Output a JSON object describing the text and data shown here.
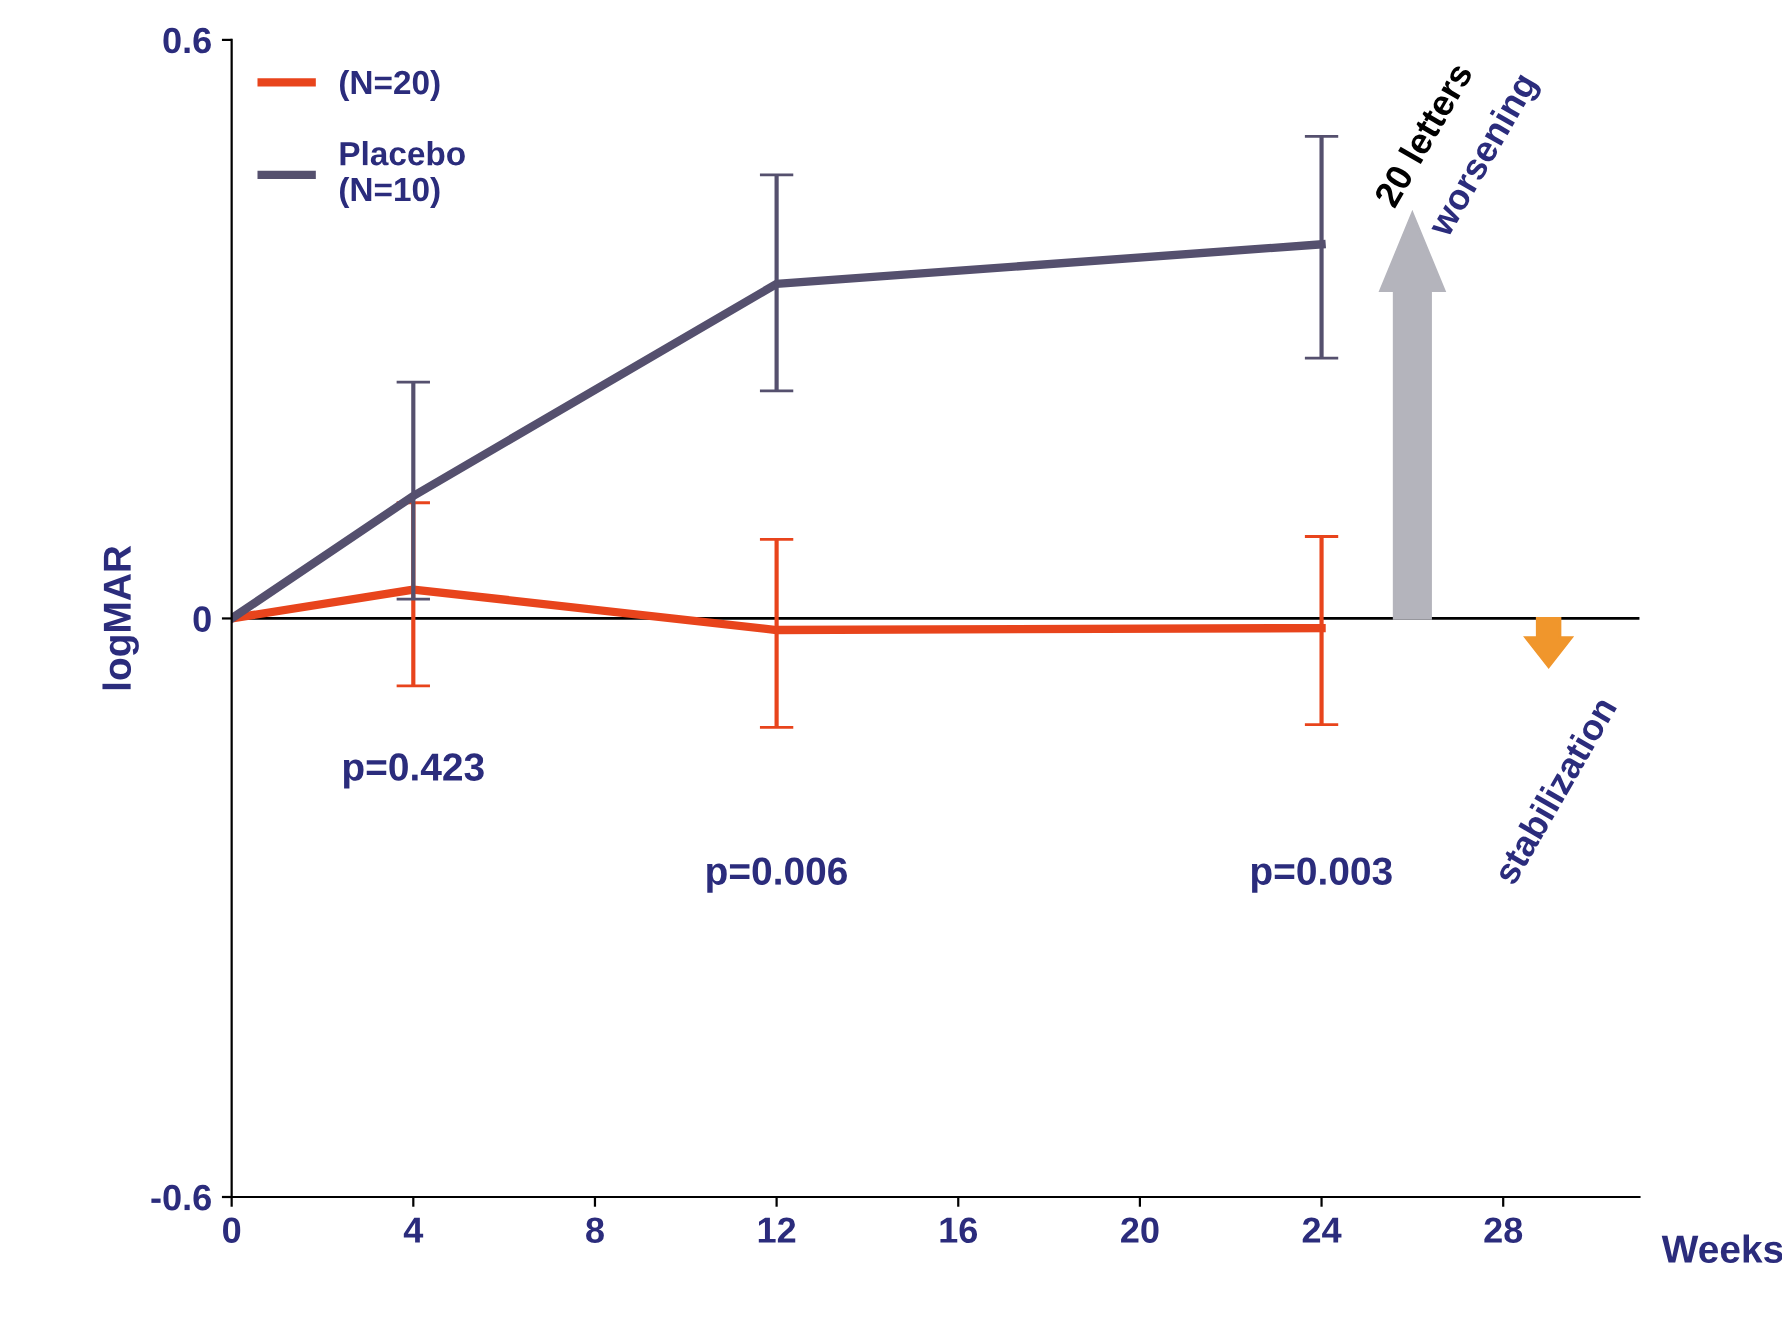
{
  "chart_data": {
    "type": "line",
    "ylabel": "logMAR",
    "xlabel": "Weeks",
    "x": [
      0,
      4,
      12,
      24
    ],
    "series": [
      {
        "name": "(N=20)",
        "color": "#e8441c",
        "values": [
          0,
          0.03,
          -0.012,
          -0.01
        ],
        "errors": [
          null,
          [
            -0.07,
            0.12
          ],
          [
            -0.113,
            0.082
          ],
          [
            -0.11,
            0.085
          ]
        ]
      },
      {
        "name": "Placebo\n(N=10)",
        "color": "#55506e",
        "values": [
          0,
          0.127,
          0.347,
          0.388
        ],
        "errors": [
          null,
          [
            0.02,
            0.245
          ],
          [
            0.236,
            0.46
          ],
          [
            0.27,
            0.5
          ]
        ]
      }
    ],
    "xlim": [
      0,
      31
    ],
    "xticks": [
      0,
      4,
      8,
      12,
      16,
      20,
      24,
      28
    ],
    "ylim": [
      -0.6,
      0.6
    ],
    "yticks": [
      -0.6,
      0,
      0.6
    ],
    "ref_lines": [
      {
        "axis": "y",
        "value": 0,
        "color": "#000000"
      }
    ],
    "annotations": [
      "p=0.423",
      "p=0.006",
      "p=0.003",
      "20 letters",
      "worsening",
      "stabilization"
    ],
    "legend": "top left",
    "grid": false,
    "marker": "none",
    "line_style": "solid"
  }
}
